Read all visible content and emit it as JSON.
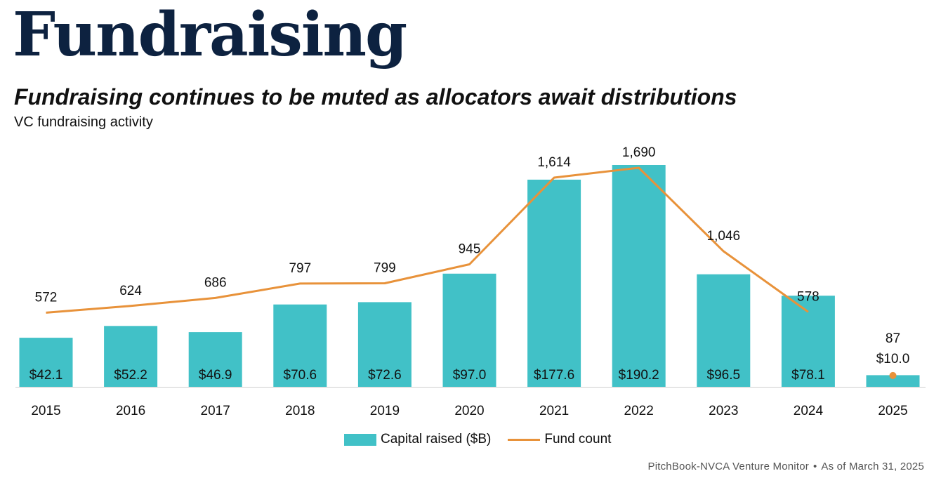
{
  "header": {
    "title": "Fundraising",
    "subtitle": "Fundraising continues to be muted as allocators await distributions",
    "chart_heading": "VC fundraising activity"
  },
  "footer": {
    "source": "PitchBook-NVCA Venture Monitor",
    "separator": "•",
    "as_of": "As of March 31, 2025"
  },
  "legend": {
    "bar_label": "Capital raised ($B)",
    "line_label": "Fund count"
  },
  "colors": {
    "bar": "#41c1c7",
    "line": "#e8923a",
    "title": "#0d2240"
  },
  "chart_data": {
    "type": "bar",
    "categories": [
      "2015",
      "2016",
      "2017",
      "2018",
      "2019",
      "2020",
      "2021",
      "2022",
      "2023",
      "2024",
      "2025"
    ],
    "series": [
      {
        "name": "Capital raised ($B)",
        "type": "bar",
        "values": [
          42.1,
          52.2,
          46.9,
          70.6,
          72.6,
          97.0,
          177.6,
          190.2,
          96.5,
          78.1,
          10.0
        ],
        "labels": [
          "$42.1",
          "$52.2",
          "$46.9",
          "$70.6",
          "$72.6",
          "$97.0",
          "$177.6",
          "$190.2",
          "$96.5",
          "$78.1",
          "$10.0"
        ]
      },
      {
        "name": "Fund count",
        "type": "line",
        "values": [
          572,
          624,
          686,
          797,
          799,
          945,
          1614,
          1690,
          1046,
          578,
          87
        ],
        "labels": [
          "572",
          "624",
          "686",
          "797",
          "799",
          "945",
          "1,614",
          "1,690",
          "1,046",
          "578",
          "87"
        ]
      }
    ],
    "line_break_before_last": true,
    "last_point_style": "marker",
    "bar_axis_max": 190.2,
    "line_axis_max": 1690,
    "gridlines": false,
    "legend_position": "bottom-center"
  }
}
